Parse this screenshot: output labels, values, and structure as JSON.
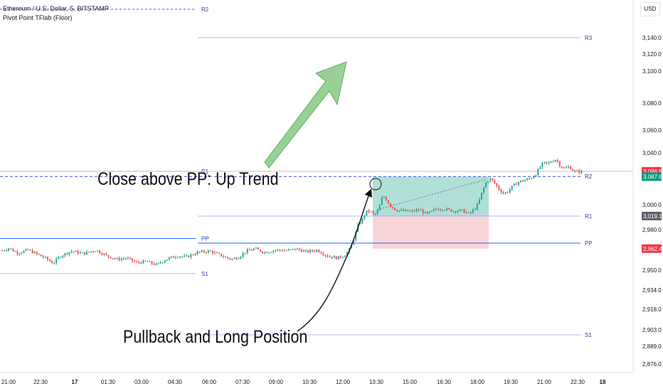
{
  "legend": {
    "symbol_line": "Ethereum / U.S. Dollar, 5, BITSTAMP",
    "indicator_line": "Pivot Point TFlab (Floor)"
  },
  "currency_label": "USD",
  "annotations": {
    "up_trend": "Close above PP: Up Trend",
    "pullback": "Pullback and Long Position"
  },
  "colors": {
    "up": "#26a69a",
    "down": "#ef5350",
    "pivot_blue": "#2962ff",
    "level_line": "#b2b8f0",
    "profit_zone": "#7fcbbf",
    "loss_zone": "#f8c9cf",
    "arrow_green": "#7dc67a",
    "price_red": "#f23645",
    "price_green": "#089981",
    "price_grey": "#5d606b"
  },
  "chart_data": {
    "type": "candlestick",
    "symbol": "Ethereum / U.S. Dollar",
    "timeframe": "5",
    "exchange": "BITSTAMP",
    "y_axis_ticks": [
      "3,140.0",
      "3,120.0",
      "3,100.0",
      "3,080.0",
      "3,060.0",
      "3,040.0",
      "3,019.1",
      "3,000.0",
      "2,980.0",
      "2,962.4",
      "2,950.0",
      "2,934.0",
      "2,918.0",
      "2,903.0",
      "2,889.0",
      "2,876.0"
    ],
    "x_axis_ticks": [
      "21:00",
      "22:30",
      "17",
      "01:30",
      "03:00",
      "04:30",
      "06:00",
      "07:30",
      "09:00",
      "10:30",
      "12:00",
      "13:30",
      "15:00",
      "16:30",
      "18:00",
      "19:30",
      "21:00",
      "22:30",
      "18"
    ],
    "price_labels": [
      {
        "text": "3,096.9",
        "kind": "last_price"
      },
      {
        "text": "3,087.6",
        "kind": "stop_target"
      },
      {
        "text": "3,019.1",
        "kind": "entry"
      },
      {
        "text": "2,962.4",
        "kind": "stop_loss"
      }
    ],
    "pivot_levels_previous_session": [
      {
        "name": "R2",
        "value": 3138
      },
      {
        "name": "R1",
        "value": 3097
      },
      {
        "name": "PP",
        "value": 2980
      },
      {
        "name": "S1",
        "value": 2919
      }
    ],
    "pivot_levels_current_session": [
      {
        "name": "R3",
        "value": 3135
      },
      {
        "name": "R2",
        "value": 3088
      },
      {
        "name": "R1",
        "value": 3019
      },
      {
        "name": "PP",
        "value": 2972
      },
      {
        "name": "S1",
        "value": 2903
      }
    ],
    "position": {
      "type": "long",
      "entry": 3019.1,
      "target": 3087.6,
      "stop": 2962.4,
      "start_time": "13:30",
      "end_time": "18:00"
    },
    "pre_rally_path": [
      [
        0,
        2958
      ],
      [
        12,
        2963
      ],
      [
        25,
        2955
      ],
      [
        40,
        2960
      ],
      [
        55,
        2951
      ],
      [
        65,
        2945
      ],
      [
        75,
        2937
      ],
      [
        85,
        2950
      ],
      [
        100,
        2958
      ],
      [
        118,
        2954
      ],
      [
        135,
        2960
      ],
      [
        150,
        2950
      ],
      [
        165,
        2944
      ],
      [
        178,
        2946
      ],
      [
        192,
        2938
      ],
      [
        206,
        2940
      ],
      [
        220,
        2934
      ],
      [
        232,
        2943
      ],
      [
        248,
        2950
      ],
      [
        262,
        2948
      ],
      [
        278,
        2956
      ],
      [
        295,
        2958
      ],
      [
        312,
        2950
      ],
      [
        325,
        2944
      ],
      [
        336,
        2948
      ],
      [
        346,
        2958
      ],
      [
        358,
        2962
      ],
      [
        372,
        2956
      ],
      [
        388,
        2960
      ],
      [
        404,
        2959
      ],
      [
        416,
        2962
      ],
      [
        430,
        2957
      ],
      [
        446,
        2960
      ],
      [
        460,
        2950
      ],
      [
        474,
        2946
      ],
      [
        486,
        2952
      ]
    ],
    "post_entry_path": [
      [
        508,
        3010
      ],
      [
        514,
        3026
      ],
      [
        520,
        3028
      ],
      [
        526,
        3020
      ],
      [
        532,
        3030
      ],
      [
        538,
        3055
      ],
      [
        542,
        3050
      ],
      [
        548,
        3038
      ],
      [
        556,
        3030
      ],
      [
        566,
        3028
      ],
      [
        578,
        3027
      ],
      [
        590,
        3030
      ],
      [
        600,
        3022
      ],
      [
        612,
        3031
      ],
      [
        624,
        3032
      ],
      [
        636,
        3028
      ],
      [
        648,
        3029
      ],
      [
        660,
        3023
      ],
      [
        666,
        3030
      ],
      [
        672,
        3040
      ],
      [
        678,
        3062
      ],
      [
        684,
        3080
      ],
      [
        690,
        3084
      ],
      [
        696,
        3075
      ],
      [
        702,
        3065
      ],
      [
        708,
        3058
      ],
      [
        714,
        3062
      ],
      [
        720,
        3070
      ],
      [
        728,
        3078
      ],
      [
        736,
        3081
      ],
      [
        744,
        3084
      ],
      [
        752,
        3090
      ],
      [
        758,
        3102
      ],
      [
        764,
        3112
      ],
      [
        770,
        3110
      ],
      [
        776,
        3115
      ],
      [
        782,
        3118
      ],
      [
        788,
        3105
      ],
      [
        794,
        3102
      ],
      [
        800,
        3105
      ],
      [
        806,
        3098
      ],
      [
        812,
        3096
      ],
      [
        818,
        3097
      ]
    ]
  }
}
